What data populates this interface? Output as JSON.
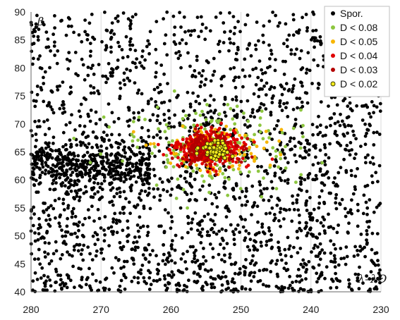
{
  "chart_data": {
    "type": "scatter",
    "title": "",
    "xlabel": "λ–λʘ",
    "ylabel": "β",
    "xlim": [
      280,
      230
    ],
    "ylim": [
      40,
      90
    ],
    "x_reversed": true,
    "x_ticks": [
      280,
      270,
      260,
      250,
      240,
      230
    ],
    "y_ticks": [
      40,
      45,
      50,
      55,
      60,
      65,
      70,
      75,
      80,
      85,
      90
    ],
    "grid": "vertical",
    "legend_position": "top-right",
    "series": [
      {
        "name": "Spor.",
        "color": "#000000",
        "marker": "dot",
        "distribution": {
          "band": {
            "x_range": [
              280,
              263
            ],
            "y_center": 62.5,
            "y_sd": 2.2,
            "count": 420
          },
          "scatter": {
            "x_range": [
              280,
              230
            ],
            "y_range": [
              40,
              90
            ],
            "count": 2100
          }
        }
      },
      {
        "name": "D < 0.08",
        "color": "#8dc63f",
        "marker": "dot",
        "distribution": {
          "center": [
            254,
            66
          ],
          "x_sd": 6.5,
          "y_sd": 3.6,
          "count": 180
        }
      },
      {
        "name": "D < 0.05",
        "color": "#f7b500",
        "marker": "dot",
        "distribution": {
          "center": [
            254,
            65.5
          ],
          "x_sd": 3.6,
          "y_sd": 2.2,
          "count": 150
        }
      },
      {
        "name": "D < 0.04",
        "color": "#e00000",
        "marker": "dot",
        "distribution": {
          "center": [
            254.5,
            65.5
          ],
          "x_sd": 2.8,
          "y_sd": 1.8,
          "count": 260
        }
      },
      {
        "name": "D < 0.03",
        "color": "#b30000",
        "marker": "dot",
        "distribution": {
          "center": [
            254.5,
            65.5
          ],
          "x_sd": 2.0,
          "y_sd": 1.4,
          "count": 180
        }
      },
      {
        "name": "D < 0.02",
        "color": "#f2ea1c",
        "stroke": "#333300",
        "marker": "ring",
        "distribution": {
          "center": [
            253.5,
            65.3
          ],
          "x_sd": 1.2,
          "y_sd": 0.9,
          "count": 60
        }
      }
    ]
  }
}
